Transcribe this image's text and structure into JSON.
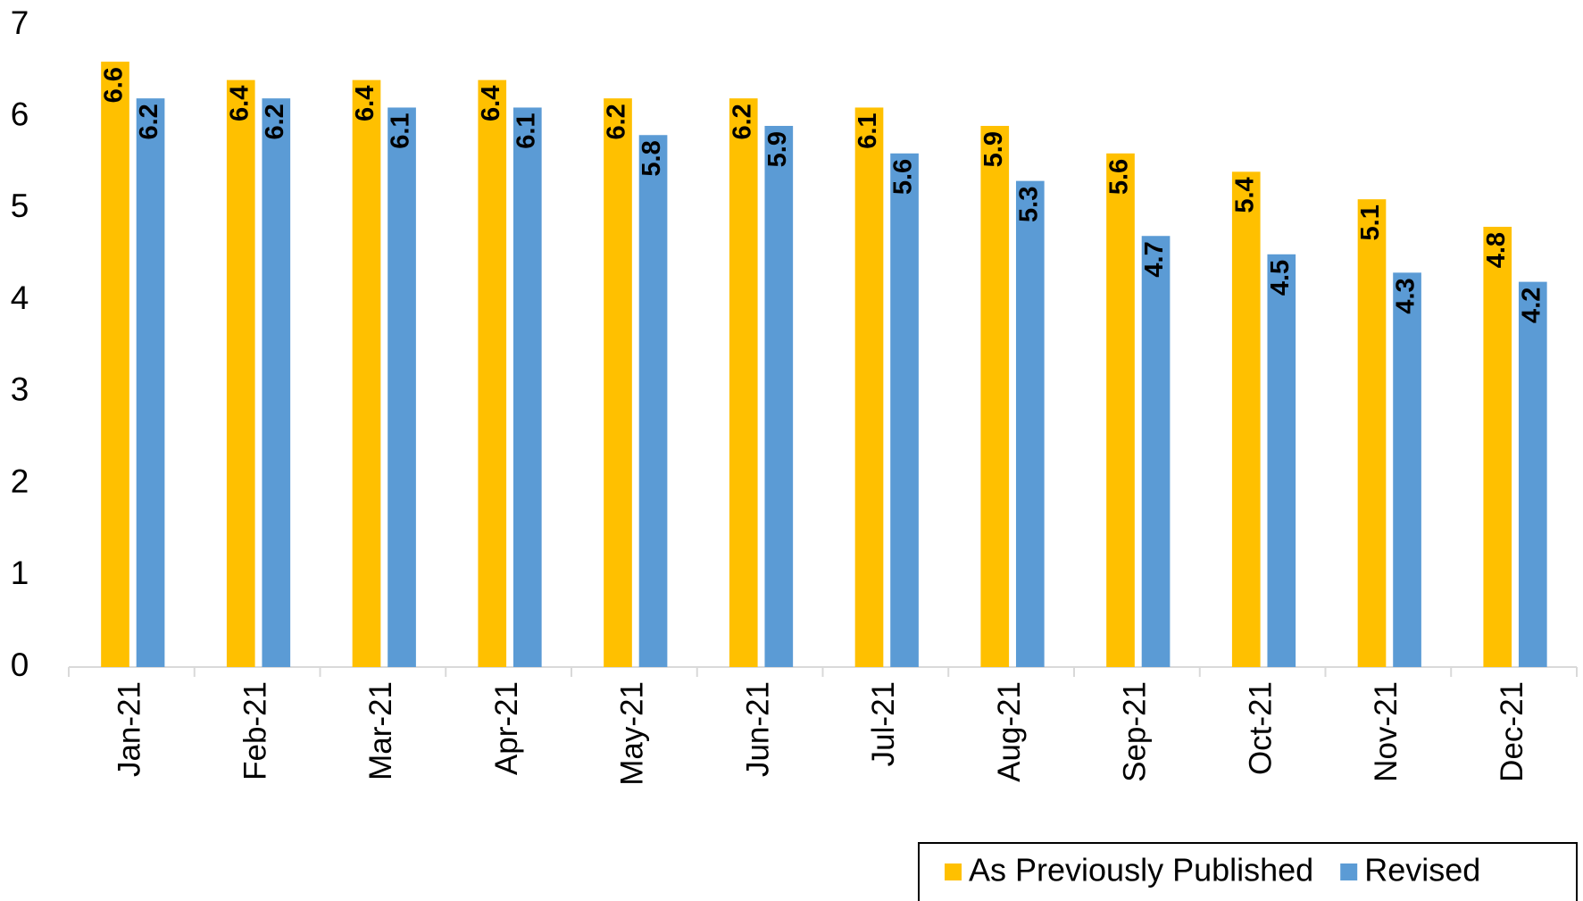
{
  "chart_data": {
    "type": "bar",
    "categories": [
      "Jan-21",
      "Feb-21",
      "Mar-21",
      "Apr-21",
      "May-21",
      "Jun-21",
      "Jul-21",
      "Aug-21",
      "Sep-21",
      "Oct-21",
      "Nov-21",
      "Dec-21"
    ],
    "series": [
      {
        "name": "As Previously Published",
        "color": "#ffc000",
        "values": [
          6.6,
          6.4,
          6.4,
          6.4,
          6.2,
          6.2,
          6.1,
          5.9,
          5.6,
          5.4,
          5.1,
          4.8
        ]
      },
      {
        "name": "Revised",
        "color": "#5b9bd5",
        "values": [
          6.2,
          6.2,
          6.1,
          6.1,
          5.8,
          5.9,
          5.6,
          5.3,
          4.7,
          4.5,
          4.3,
          4.2
        ]
      }
    ],
    "ylim": [
      0,
      7
    ],
    "yticks": [
      0,
      1,
      2,
      3,
      4,
      5,
      6,
      7
    ],
    "grid": false,
    "legend": "bottom-right",
    "data_labels": true
  }
}
